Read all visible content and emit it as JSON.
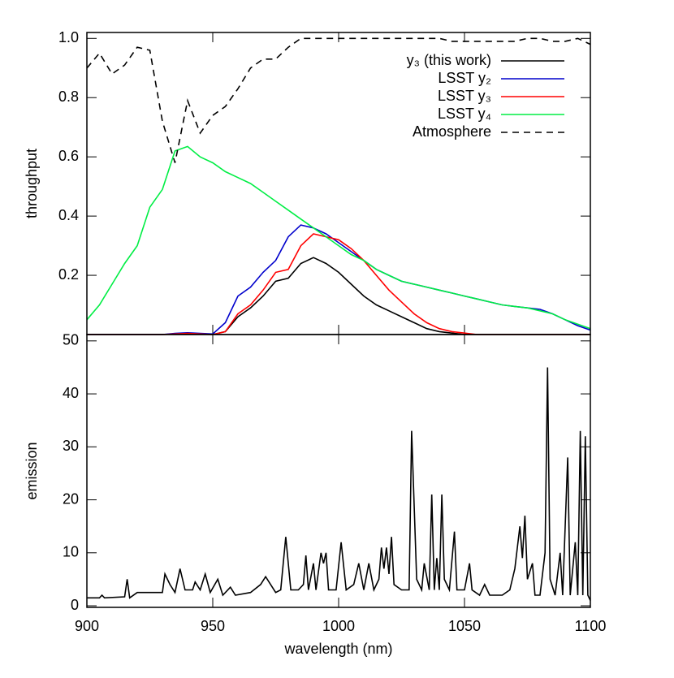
{
  "chart_data": [
    {
      "type": "line",
      "ylabel": "throughput",
      "xlim": [
        900,
        1100
      ],
      "xticks": [
        900,
        950,
        1000,
        1050,
        1100
      ],
      "ylim": [
        0,
        1.02
      ],
      "yticks": [
        0.2,
        0.4,
        0.6,
        0.8,
        {
          "value": 1,
          "label": "1.0"
        }
      ],
      "legend": "upper right",
      "x": [
        900,
        905,
        910,
        915,
        920,
        925,
        930,
        935,
        940,
        945,
        950,
        955,
        960,
        965,
        970,
        975,
        980,
        985,
        990,
        995,
        1000,
        1005,
        1010,
        1015,
        1020,
        1025,
        1030,
        1035,
        1040,
        1045,
        1050,
        1055,
        1060,
        1065,
        1070,
        1075,
        1080,
        1085,
        1090,
        1095,
        1100
      ],
      "series": [
        {
          "name": "y₃ (this work)",
          "color": "#000000",
          "dash": false,
          "values": [
            0,
            0,
            0,
            0,
            0,
            0,
            0,
            0.002,
            0.004,
            0.002,
            0,
            0.01,
            0.06,
            0.09,
            0.13,
            0.18,
            0.19,
            0.24,
            0.26,
            0.24,
            0.21,
            0.17,
            0.13,
            0.1,
            0.08,
            0.06,
            0.04,
            0.02,
            0.01,
            0.005,
            0,
            0,
            0,
            0,
            0,
            0,
            0,
            0,
            0,
            0,
            0
          ]
        },
        {
          "name": "LSST y₂",
          "color": "#0000cc",
          "dash": false,
          "values": [
            0,
            0,
            0,
            0,
            0,
            0,
            0,
            0.004,
            0.006,
            0.004,
            0.002,
            0.04,
            0.13,
            0.16,
            0.21,
            0.25,
            0.33,
            0.37,
            0.36,
            0.34,
            0.31,
            0.28,
            0.25,
            0.22,
            0.2,
            0.18,
            0.17,
            0.16,
            0.15,
            0.14,
            0.13,
            0.12,
            0.11,
            0.1,
            0.095,
            0.09,
            0.085,
            0.07,
            0.05,
            0.03,
            0.015
          ]
        },
        {
          "name": "LSST y₃",
          "color": "#ff0000",
          "dash": false,
          "values": [
            0,
            0,
            0,
            0,
            0,
            0,
            0,
            0.002,
            0.004,
            0.002,
            0,
            0.01,
            0.07,
            0.1,
            0.15,
            0.21,
            0.22,
            0.3,
            0.34,
            0.33,
            0.32,
            0.29,
            0.25,
            0.2,
            0.15,
            0.11,
            0.07,
            0.04,
            0.02,
            0.01,
            0.005,
            0,
            0,
            0,
            0,
            0,
            0,
            0,
            0,
            0,
            0
          ]
        },
        {
          "name": "LSST y₄",
          "color": "#00ee44",
          "dash": false,
          "values": [
            0.05,
            0.1,
            0.17,
            0.24,
            0.3,
            0.43,
            0.49,
            0.62,
            0.635,
            0.6,
            0.58,
            0.55,
            0.53,
            0.51,
            0.48,
            0.45,
            0.42,
            0.39,
            0.36,
            0.33,
            0.3,
            0.27,
            0.25,
            0.22,
            0.2,
            0.18,
            0.17,
            0.16,
            0.15,
            0.14,
            0.13,
            0.12,
            0.11,
            0.1,
            0.095,
            0.09,
            0.08,
            0.07,
            0.05,
            0.035,
            0.02
          ]
        },
        {
          "name": "Atmosphere",
          "color": "#000000",
          "dash": true,
          "values": [
            0.9,
            0.95,
            0.88,
            0.91,
            0.97,
            0.96,
            0.72,
            0.58,
            0.79,
            0.68,
            0.74,
            0.77,
            0.83,
            0.9,
            0.93,
            0.93,
            0.97,
            1.0,
            1.0,
            1.0,
            1.0,
            1.0,
            1.0,
            1.0,
            1.0,
            1.0,
            1.0,
            1.0,
            1.0,
            0.99,
            0.99,
            0.99,
            0.99,
            0.99,
            0.99,
            1.0,
            1.0,
            0.99,
            0.99,
            1.0,
            0.98
          ]
        }
      ]
    },
    {
      "type": "line",
      "ylabel": "emission",
      "xlabel": "wavelength (nm)",
      "xlim": [
        900,
        1100
      ],
      "xticks": [
        900,
        950,
        1000,
        1050,
        1100
      ],
      "ylim": [
        -0.3,
        51.2
      ],
      "yticks": [
        0,
        10,
        20,
        30,
        40,
        50
      ],
      "color": "#000000",
      "x": [
        900,
        905,
        906,
        907,
        915,
        916,
        917,
        920,
        930,
        931,
        933,
        935,
        937,
        939,
        942,
        943,
        945,
        947,
        949,
        952,
        954,
        957,
        959,
        965,
        969,
        971,
        973,
        975,
        977,
        979,
        981,
        984,
        986,
        987,
        988,
        990,
        991,
        993,
        994,
        995,
        996,
        999,
        1001,
        1003,
        1006,
        1008,
        1010,
        1012,
        1014,
        1016,
        1017,
        1018,
        1019,
        1020,
        1021,
        1022,
        1025,
        1028,
        1029,
        1031,
        1033,
        1034,
        1036,
        1037,
        1038,
        1039,
        1040,
        1041,
        1042,
        1044,
        1046,
        1047,
        1050,
        1052,
        1053,
        1056,
        1058,
        1060,
        1065,
        1068,
        1070,
        1072,
        1073,
        1074,
        1075,
        1077,
        1078,
        1080,
        1082,
        1083,
        1084,
        1086,
        1088,
        1089,
        1091,
        1092,
        1094,
        1095,
        1096,
        1097,
        1098,
        1099,
        1100
      ],
      "values": [
        1.5,
        1.5,
        2,
        1.5,
        1.7,
        5,
        1.5,
        2.5,
        2.5,
        6,
        4,
        2.5,
        7,
        3,
        3,
        4.5,
        3,
        6,
        2.5,
        5,
        2,
        3.5,
        2,
        2.5,
        4,
        5.5,
        4,
        2.5,
        3,
        13,
        3,
        3,
        4,
        9.5,
        3,
        8,
        3,
        10,
        8,
        10,
        3,
        3,
        12,
        3,
        4,
        8,
        3,
        8,
        3,
        5,
        11,
        7,
        11,
        6,
        13,
        4,
        3,
        3,
        33,
        5,
        3,
        8,
        3,
        21,
        3,
        9,
        3,
        21,
        5,
        3,
        14,
        3,
        3,
        8,
        3,
        2,
        4,
        2,
        2,
        3,
        7,
        15,
        9,
        17,
        5,
        8,
        2,
        2,
        10,
        45,
        5,
        2,
        10,
        2,
        28,
        2,
        12,
        2,
        33,
        2,
        32,
        2,
        1
      ]
    }
  ]
}
